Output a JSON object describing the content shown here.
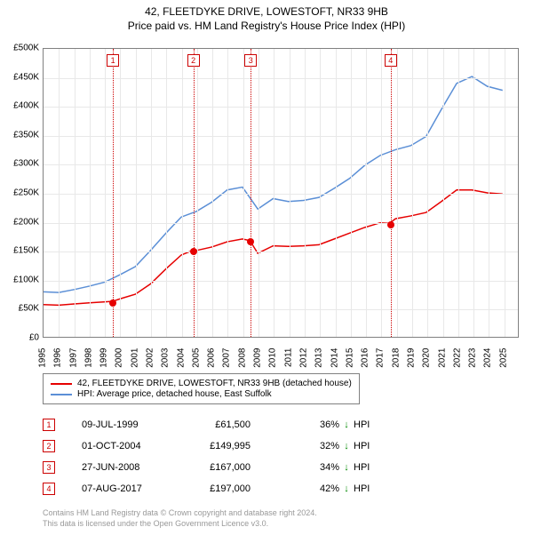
{
  "title_line1": "42, FLEETDYKE DRIVE, LOWESTOFT, NR33 9HB",
  "title_line2": "Price paid vs. HM Land Registry's House Price Index (HPI)",
  "chart": {
    "type": "line",
    "background_color": "#ffffff",
    "grid_color": "#e8e8e8",
    "border_color": "#808080",
    "x_axis": {
      "min": 1995,
      "max": 2026,
      "ticks": [
        1995,
        1996,
        1997,
        1998,
        1999,
        2000,
        2001,
        2002,
        2003,
        2004,
        2005,
        2006,
        2007,
        2008,
        2009,
        2010,
        2011,
        2012,
        2013,
        2014,
        2015,
        2016,
        2017,
        2018,
        2019,
        2020,
        2021,
        2022,
        2023,
        2024,
        2025
      ],
      "label_fontsize": 10
    },
    "y_axis": {
      "min": 0,
      "max": 500000,
      "ticks": [
        0,
        50000,
        100000,
        150000,
        200000,
        250000,
        300000,
        350000,
        400000,
        450000,
        500000
      ],
      "tick_labels": [
        "£0",
        "£50K",
        "£100K",
        "£150K",
        "£200K",
        "£250K",
        "£300K",
        "£350K",
        "£400K",
        "£450K",
        "£500K"
      ],
      "label_fontsize": 10
    },
    "series": [
      {
        "name": "property",
        "label": "42, FLEETDYKE DRIVE, LOWESTOFT, NR33 9HB (detached house)",
        "color": "#e60000",
        "line_width": 1.5,
        "data": [
          [
            1995,
            56000
          ],
          [
            1996,
            55000
          ],
          [
            1997,
            57000
          ],
          [
            1998,
            59000
          ],
          [
            1999.5,
            61500
          ],
          [
            2000,
            66000
          ],
          [
            2001,
            74000
          ],
          [
            2002,
            92000
          ],
          [
            2003,
            118000
          ],
          [
            2004,
            142000
          ],
          [
            2004.75,
            149995
          ],
          [
            2005,
            150000
          ],
          [
            2006,
            156000
          ],
          [
            2007,
            165000
          ],
          [
            2008,
            170000
          ],
          [
            2008.49,
            167000
          ],
          [
            2009,
            145000
          ],
          [
            2010,
            158000
          ],
          [
            2011,
            157000
          ],
          [
            2012,
            158000
          ],
          [
            2013,
            160000
          ],
          [
            2014,
            170000
          ],
          [
            2015,
            180000
          ],
          [
            2016,
            190000
          ],
          [
            2017,
            198000
          ],
          [
            2017.6,
            197000
          ],
          [
            2018,
            205000
          ],
          [
            2019,
            210000
          ],
          [
            2020,
            216000
          ],
          [
            2021,
            235000
          ],
          [
            2022,
            255000
          ],
          [
            2023,
            255000
          ],
          [
            2024,
            250000
          ],
          [
            2025,
            248000
          ]
        ]
      },
      {
        "name": "hpi",
        "label": "HPI: Average price, detached house, East Suffolk",
        "color": "#5b8fd6",
        "line_width": 1.5,
        "data": [
          [
            1995,
            78000
          ],
          [
            1996,
            77000
          ],
          [
            1997,
            82000
          ],
          [
            1998,
            88000
          ],
          [
            1999,
            95000
          ],
          [
            2000,
            108000
          ],
          [
            2001,
            122000
          ],
          [
            2002,
            150000
          ],
          [
            2003,
            180000
          ],
          [
            2004,
            208000
          ],
          [
            2005,
            218000
          ],
          [
            2006,
            234000
          ],
          [
            2007,
            255000
          ],
          [
            2008,
            260000
          ],
          [
            2009,
            222000
          ],
          [
            2010,
            240000
          ],
          [
            2011,
            235000
          ],
          [
            2012,
            237000
          ],
          [
            2013,
            242000
          ],
          [
            2014,
            258000
          ],
          [
            2015,
            275000
          ],
          [
            2016,
            298000
          ],
          [
            2017,
            315000
          ],
          [
            2018,
            325000
          ],
          [
            2019,
            332000
          ],
          [
            2020,
            348000
          ],
          [
            2021,
            395000
          ],
          [
            2022,
            440000
          ],
          [
            2023,
            452000
          ],
          [
            2024,
            435000
          ],
          [
            2025,
            428000
          ]
        ]
      }
    ],
    "events": [
      {
        "n": "1",
        "x": 1999.52
      },
      {
        "n": "2",
        "x": 2004.75
      },
      {
        "n": "3",
        "x": 2008.49
      },
      {
        "n": "4",
        "x": 2017.6
      }
    ],
    "markers": [
      {
        "x": 1999.52,
        "y": 61500
      },
      {
        "x": 2004.75,
        "y": 149995
      },
      {
        "x": 2008.49,
        "y": 167000
      },
      {
        "x": 2017.6,
        "y": 197000
      }
    ],
    "marker_color": "#e60000",
    "event_line_color": "#cc0000"
  },
  "legend": {
    "items": [
      {
        "color": "#e60000",
        "label": "42, FLEETDYKE DRIVE, LOWESTOFT, NR33 9HB (detached house)"
      },
      {
        "color": "#5b8fd6",
        "label": "HPI: Average price, detached house, East Suffolk"
      }
    ]
  },
  "transactions": [
    {
      "n": "1",
      "date": "09-JUL-1999",
      "price": "£61,500",
      "pct": "36%",
      "dir": "↓",
      "suffix": "HPI"
    },
    {
      "n": "2",
      "date": "01-OCT-2004",
      "price": "£149,995",
      "pct": "32%",
      "dir": "↓",
      "suffix": "HPI"
    },
    {
      "n": "3",
      "date": "27-JUN-2008",
      "price": "£167,000",
      "pct": "34%",
      "dir": "↓",
      "suffix": "HPI"
    },
    {
      "n": "4",
      "date": "07-AUG-2017",
      "price": "£197,000",
      "pct": "42%",
      "dir": "↓",
      "suffix": "HPI"
    }
  ],
  "footer_line1": "Contains HM Land Registry data © Crown copyright and database right 2024.",
  "footer_line2": "This data is licensed under the Open Government Licence v3.0.",
  "colors": {
    "arrow_down": "#008800",
    "footer_text": "#999999"
  }
}
